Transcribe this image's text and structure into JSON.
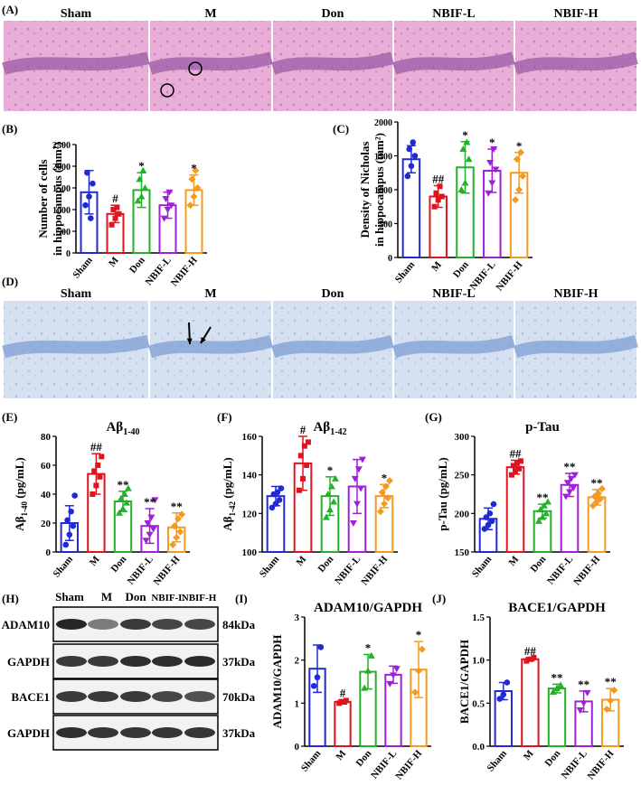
{
  "panel_labels": {
    "A": "(A)",
    "B": "(B)",
    "C": "(C)",
    "D": "(D)",
    "E": "(E)",
    "F": "(F)",
    "G": "(G)",
    "H": "(H)",
    "I": "(I)",
    "J": "(J)"
  },
  "groups": [
    "Sham",
    "M",
    "Don",
    "NBIF-L",
    "NBIF-H"
  ],
  "colors": {
    "Sham": "#1f2ad6",
    "M": "#e0141e",
    "Don": "#25b02a",
    "NBIF-L": "#a020d8",
    "NBIF-H": "#f39a1f",
    "he_bg": "#e7a8d4",
    "nissl_bg": "#d3def0"
  },
  "western": {
    "headers": [
      "Sham",
      "M",
      "Don",
      "NBIF-L",
      "NBIF-H"
    ],
    "rows": [
      {
        "protein": "ADAM10",
        "size": "84kDa"
      },
      {
        "protein": "GAPDH",
        "size": "37kDa"
      },
      {
        "protein": "BACE1",
        "size": "70kDa"
      },
      {
        "protein": "GAPDH",
        "size": "37kDa"
      }
    ]
  },
  "chart_data": [
    {
      "id": "B",
      "type": "bar",
      "ylabel_lines": [
        "Number of cells",
        "in hippocampus (mm²)"
      ],
      "ylim": [
        0,
        2500
      ],
      "yticks": [
        0,
        500,
        1000,
        1500,
        2000,
        2500
      ],
      "values": [
        1400,
        900,
        1450,
        1100,
        1450
      ],
      "errors": [
        500,
        200,
        400,
        300,
        350
      ],
      "marks": [
        "",
        "#",
        "*",
        "",
        "*"
      ],
      "points": [
        [
          1100,
          1300,
          1600,
          1850,
          800
        ],
        [
          650,
          800,
          900,
          1000,
          1050
        ],
        [
          1200,
          1300,
          1500,
          1700,
          1900
        ],
        [
          800,
          1000,
          1100,
          1250,
          1400
        ],
        [
          1100,
          1300,
          1500,
          1700,
          1900
        ]
      ]
    },
    {
      "id": "C",
      "type": "bar",
      "ylabel_lines": [
        "Density of Nicholas",
        "in hippocampus (mm²)"
      ],
      "ylim": [
        0,
        2000
      ],
      "yticks": [
        0,
        500,
        1000,
        1500,
        2000
      ],
      "values": [
        1450,
        900,
        1330,
        1280,
        1250
      ],
      "errors": [
        200,
        160,
        380,
        320,
        300
      ],
      "marks": [
        "",
        "##",
        "*",
        "*",
        "*"
      ],
      "points": [
        [
          1200,
          1350,
          1500,
          1600,
          1700
        ],
        [
          750,
          850,
          900,
          950,
          1050
        ],
        [
          1000,
          1100,
          1450,
          1600,
          1700
        ],
        [
          950,
          1100,
          1300,
          1400,
          1600
        ],
        [
          850,
          1000,
          1200,
          1450,
          1550
        ]
      ]
    },
    {
      "id": "E",
      "type": "bar",
      "title": "Aβ1-40",
      "ylabel": "Aβ1-40 (pg/mL)",
      "ylim": [
        0,
        80
      ],
      "yticks": [
        0,
        20,
        40,
        60,
        80
      ],
      "values": [
        20,
        54,
        35,
        18,
        17
      ],
      "errors": [
        12,
        14,
        7,
        12,
        10
      ],
      "marks": [
        "",
        "##",
        "**",
        "**",
        "**"
      ],
      "points": [
        [
          5,
          12,
          18,
          22,
          28,
          39
        ],
        [
          40,
          46,
          52,
          56,
          60,
          66
        ],
        [
          27,
          30,
          34,
          37,
          40,
          44
        ],
        [
          8,
          12,
          16,
          20,
          24,
          36
        ],
        [
          5,
          10,
          14,
          18,
          23,
          26
        ]
      ]
    },
    {
      "id": "F",
      "type": "bar",
      "title": "Aβ1-42",
      "ylabel": "Aβ1-42 (pg/mL)",
      "ylim": [
        100,
        160
      ],
      "yticks": [
        100,
        120,
        140,
        160
      ],
      "values": [
        129,
        146,
        129,
        134,
        129
      ],
      "errors": [
        5,
        14,
        10,
        14,
        6
      ],
      "marks": [
        "",
        "#",
        "*",
        "",
        "*"
      ],
      "points": [
        [
          123,
          125,
          127,
          130,
          131,
          133
        ],
        [
          132,
          138,
          145,
          150,
          155,
          157
        ],
        [
          118,
          122,
          126,
          130,
          134,
          138
        ],
        [
          115,
          125,
          133,
          138,
          143,
          148
        ],
        [
          121,
          125,
          128,
          131,
          134,
          137
        ]
      ]
    },
    {
      "id": "G",
      "type": "bar",
      "title": "p-Tau",
      "ylabel": "p-Tau (pg/mL)",
      "ylim": [
        150,
        300
      ],
      "yticks": [
        150,
        200,
        250,
        300
      ],
      "values": [
        193,
        260,
        203,
        237,
        221
      ],
      "errors": [
        14,
        9,
        9,
        15,
        10
      ],
      "marks": [
        "",
        "##",
        "**",
        "**",
        "**"
      ],
      "points": [
        [
          180,
          185,
          190,
          195,
          200,
          212
        ],
        [
          250,
          255,
          258,
          262,
          265,
          268
        ],
        [
          190,
          195,
          200,
          205,
          210,
          215
        ],
        [
          222,
          228,
          233,
          240,
          245,
          250
        ],
        [
          210,
          215,
          219,
          222,
          226,
          232
        ]
      ]
    },
    {
      "id": "I",
      "type": "bar",
      "title": "ADAM10/GAPDH",
      "ylabel": "ADAM10/GAPDH",
      "ylim": [
        0,
        3
      ],
      "yticks": [
        0,
        1,
        2,
        3
      ],
      "values": [
        1.8,
        1.03,
        1.73,
        1.66,
        1.78
      ],
      "errors": [
        0.55,
        0.05,
        0.4,
        0.2,
        0.65
      ],
      "marks": [
        "",
        "#",
        "*",
        "",
        "*"
      ],
      "points": [
        [
          1.4,
          1.6,
          2.3
        ],
        [
          1.0,
          1.03,
          1.06
        ],
        [
          1.35,
          1.75,
          2.1
        ],
        [
          1.45,
          1.65,
          1.8
        ],
        [
          1.25,
          1.75,
          2.25
        ]
      ]
    },
    {
      "id": "J",
      "type": "bar",
      "title": "BACE1/GAPDH",
      "ylabel": "BACE1/GAPDH",
      "ylim": [
        0,
        1.5
      ],
      "yticks": [
        0,
        0.5,
        1.0,
        1.5
      ],
      "ytick_labels": [
        "0.0",
        "0.5",
        "1.0",
        "1.5"
      ],
      "values": [
        0.64,
        1.01,
        0.67,
        0.52,
        0.54
      ],
      "errors": [
        0.1,
        0.02,
        0.05,
        0.12,
        0.13
      ],
      "marks": [
        "",
        "##",
        "**",
        "**",
        "**"
      ],
      "points": [
        [
          0.55,
          0.6,
          0.74
        ],
        [
          0.99,
          1.01,
          1.03
        ],
        [
          0.63,
          0.67,
          0.71
        ],
        [
          0.42,
          0.5,
          0.62
        ],
        [
          0.43,
          0.53,
          0.65
        ]
      ]
    }
  ]
}
